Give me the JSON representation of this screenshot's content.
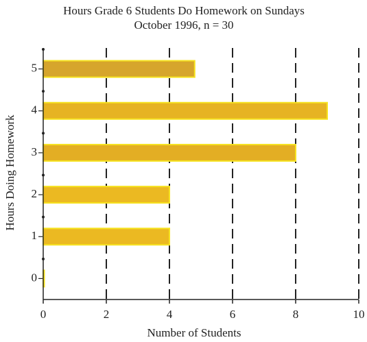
{
  "chart_data": {
    "type": "barh",
    "title": "Hours Grade 6 Students Do Homework on Sundays",
    "subtitle": "October 1996, n = 30",
    "x_label": "Number of Students",
    "y_label": "Hours Doing Homework",
    "categories": [
      "0",
      "1",
      "2",
      "3",
      "4",
      "5"
    ],
    "values": [
      0,
      4,
      4,
      8,
      9,
      4.8
    ],
    "colors": [
      "#e8b523",
      "#ebb922",
      "#ebb922",
      "#e3ae24",
      "#e6b323",
      "#d6a52c"
    ],
    "edge_color": "#f6e21f",
    "xlim": [
      0,
      10
    ],
    "xticks": [
      0,
      2,
      4,
      6,
      8,
      10
    ],
    "grid": true
  }
}
